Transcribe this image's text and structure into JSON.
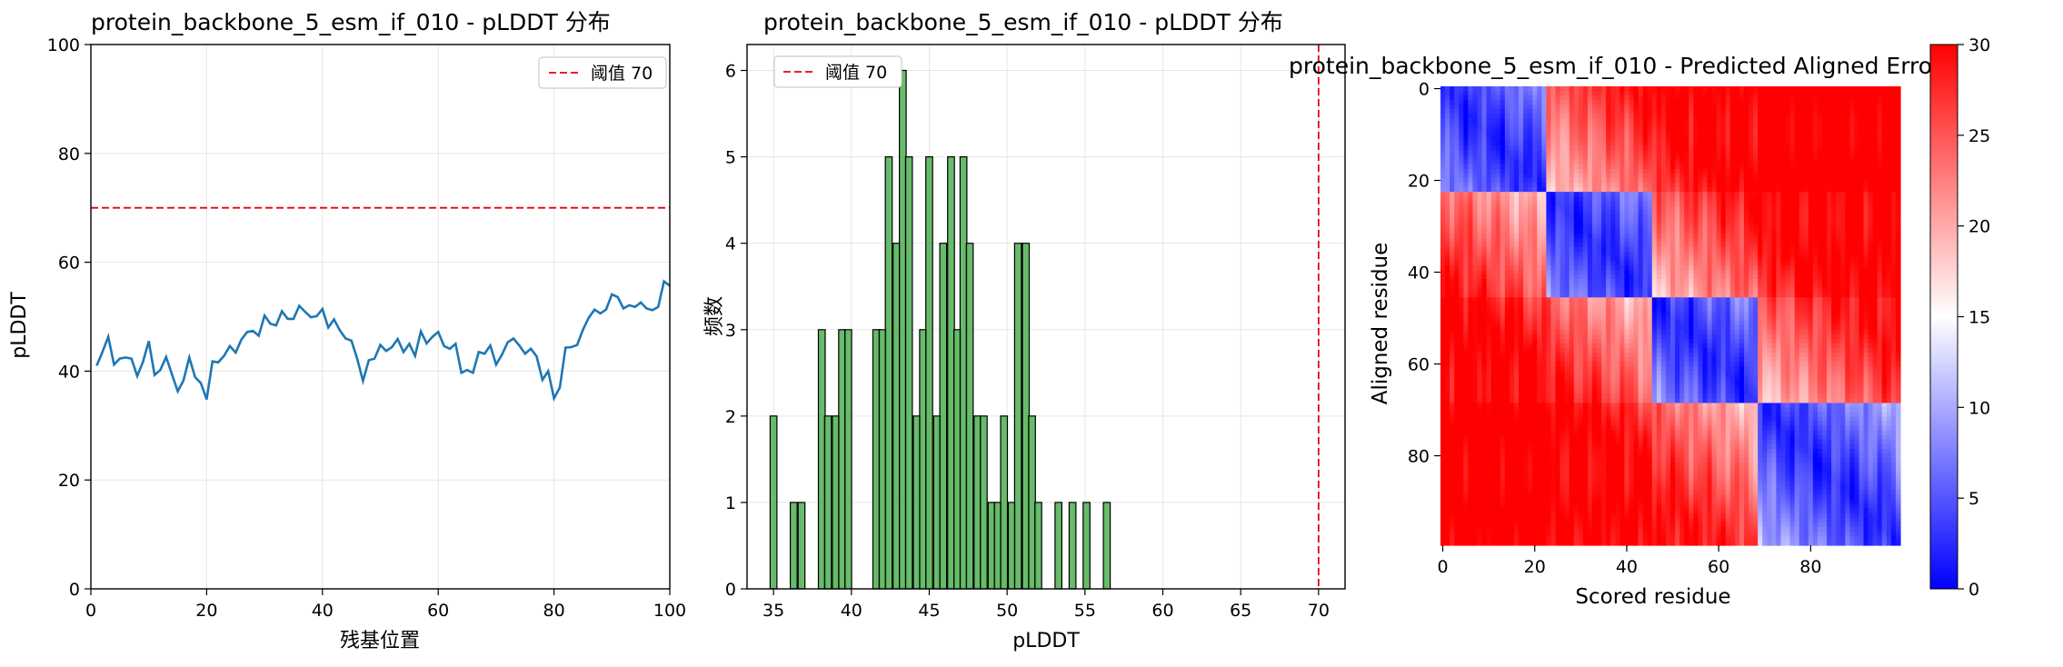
{
  "chart_data": [
    {
      "type": "line",
      "title": "protein_backbone_5_esm_if_010 - pLDDT 分布",
      "xlabel": "残基位置",
      "ylabel": "pLDDT",
      "xlim": [
        0,
        100
      ],
      "ylim": [
        0,
        100
      ],
      "xticks": [
        0,
        20,
        40,
        60,
        80,
        100
      ],
      "yticks": [
        0,
        20,
        40,
        60,
        80,
        100
      ],
      "grid": true,
      "legend": {
        "placement": "top-right",
        "entries": [
          "阈值 70"
        ]
      },
      "threshold": {
        "value": 70,
        "label": "阈值 70",
        "color": "#e8000b",
        "style": "dashed"
      },
      "series": [
        {
          "color": "#1f77b4",
          "x": [
            1,
            2,
            3,
            4,
            5,
            6,
            7,
            8,
            9,
            10,
            11,
            12,
            13,
            14,
            15,
            16,
            17,
            18,
            19,
            20,
            21,
            22,
            23,
            24,
            25,
            26,
            27,
            28,
            29,
            30,
            31,
            32,
            33,
            34,
            35,
            36,
            37,
            38,
            39,
            40,
            41,
            42,
            43,
            44,
            45,
            46,
            47,
            48,
            49,
            50,
            51,
            52,
            53,
            54,
            55,
            56,
            57,
            58,
            59,
            60,
            61,
            62,
            63,
            64,
            65,
            66,
            67,
            68,
            69,
            70,
            71,
            72,
            73,
            74,
            75,
            76,
            77,
            78,
            79,
            80,
            81,
            82,
            83,
            84,
            85,
            86,
            87,
            88,
            89,
            90,
            91,
            92,
            93,
            94,
            95,
            96,
            97,
            98,
            99,
            100
          ],
          "values": [
            41,
            43.5,
            46.3,
            41.2,
            42.3,
            42.5,
            42.3,
            39.1,
            41.7,
            45.5,
            39.3,
            40.2,
            42.6,
            39.4,
            36.3,
            38.3,
            42.5,
            38.9,
            37.8,
            34.8,
            41.8,
            41.6,
            42.8,
            44.6,
            43.4,
            45.8,
            47.2,
            47.4,
            46.5,
            50.2,
            48.7,
            48.4,
            51,
            49.6,
            49.6,
            52,
            50.9,
            49.9,
            50.1,
            51.4,
            48,
            49.5,
            47.5,
            46,
            45.6,
            42.3,
            38.2,
            42,
            42.3,
            44.8,
            43.7,
            44.4,
            45.9,
            43.5,
            45,
            42.8,
            47.3,
            45.1,
            46.3,
            47.2,
            44.6,
            44.1,
            45,
            39.7,
            40.2,
            39.7,
            43.5,
            43.2,
            44.7,
            41.2,
            43,
            45.3,
            46,
            44.7,
            43.2,
            44.1,
            42.7,
            38.4,
            40,
            35,
            37,
            44.3,
            44.4,
            44.8,
            47.6,
            49.8,
            51.3,
            50.6,
            51.3,
            54.1,
            53.6,
            51.5,
            52.1,
            51.8,
            52.6,
            51.5,
            51.2,
            51.8,
            56.5,
            55.7
          ]
        }
      ]
    },
    {
      "type": "bar",
      "title": "protein_backbone_5_esm_if_010 - pLDDT 分布",
      "xlabel": "pLDDT",
      "ylabel": "频数",
      "xlim": [
        33.3,
        71.7
      ],
      "ylim": [
        0,
        6.3
      ],
      "xticks": [
        35,
        40,
        45,
        50,
        55,
        60,
        65,
        70
      ],
      "yticks": [
        0,
        1,
        2,
        3,
        4,
        5,
        6
      ],
      "grid": true,
      "bar_color": "#4caf50",
      "bin_width": 0.44,
      "legend": {
        "placement": "top-left",
        "entries": [
          "阈值 70"
        ]
      },
      "threshold": {
        "value": 70,
        "label": "阈值 70",
        "color": "#e8000b",
        "style": "dashed"
      },
      "x": [
        35.0,
        36.3,
        36.8,
        38.1,
        38.5,
        39.0,
        39.4,
        39.8,
        41.6,
        42.0,
        42.4,
        42.9,
        43.3,
        43.7,
        44.2,
        44.6,
        45.0,
        45.5,
        45.9,
        46.4,
        46.8,
        47.2,
        47.6,
        48.1,
        48.5,
        49.0,
        49.4,
        49.8,
        50.3,
        50.7,
        51.2,
        51.6,
        52.0,
        53.3,
        54.2,
        55.1,
        56.4
      ],
      "values": [
        2,
        1,
        1,
        3,
        2,
        2,
        3,
        3,
        3,
        3,
        5,
        4,
        6,
        5,
        2,
        3,
        5,
        2,
        4,
        5,
        3,
        5,
        4,
        2,
        2,
        1,
        1,
        2,
        1,
        4,
        4,
        2,
        1,
        1,
        1,
        1,
        1
      ]
    },
    {
      "type": "heatmap",
      "title": "protein_backbone_5_esm_if_010 - Predicted Aligned Error",
      "xlabel": "Scored residue",
      "ylabel": "Aligned residue",
      "size": 100,
      "xticks": [
        0,
        20,
        40,
        60,
        80
      ],
      "yticks": [
        0,
        20,
        40,
        60,
        80
      ],
      "colormap": "bwr",
      "colorbar": {
        "min": 0,
        "max": 30,
        "ticks": [
          0,
          5,
          10,
          15,
          20,
          25,
          30
        ]
      },
      "domains": [
        [
          0,
          22
        ],
        [
          23,
          45
        ],
        [
          46,
          68
        ],
        [
          69,
          99
        ]
      ]
    }
  ]
}
